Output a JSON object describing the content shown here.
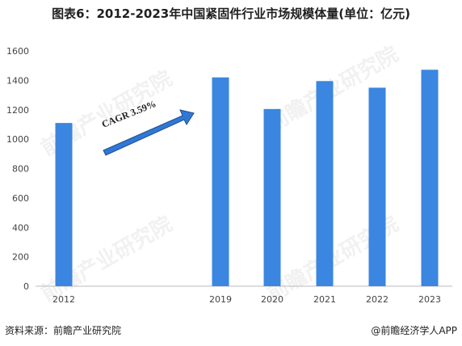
{
  "title": "图表6：2012-2023年中国紧固件行业市场规模体量(单位：亿元)",
  "chart_data": {
    "type": "bar",
    "title": "图表6：2012-2023年中国紧固件行业市场规模体量(单位：亿元)",
    "categories": [
      "2012",
      "2019",
      "2020",
      "2021",
      "2022",
      "2023"
    ],
    "values": [
      1110,
      1420,
      1205,
      1395,
      1350,
      1472
    ],
    "ylim": [
      0,
      1600
    ],
    "yticks": [
      0,
      200,
      400,
      600,
      800,
      1000,
      1200,
      1400,
      1600
    ],
    "xlabel": "",
    "ylabel": "",
    "grid": false,
    "legend": "none",
    "annotation": "CAGR 3.59%",
    "bar_color": "#3a86e0"
  },
  "watermark": "前瞻产业研究院",
  "footer": {
    "source": "资料来源：前瞻产业研究院",
    "brand": "@前瞻经济学人APP"
  }
}
